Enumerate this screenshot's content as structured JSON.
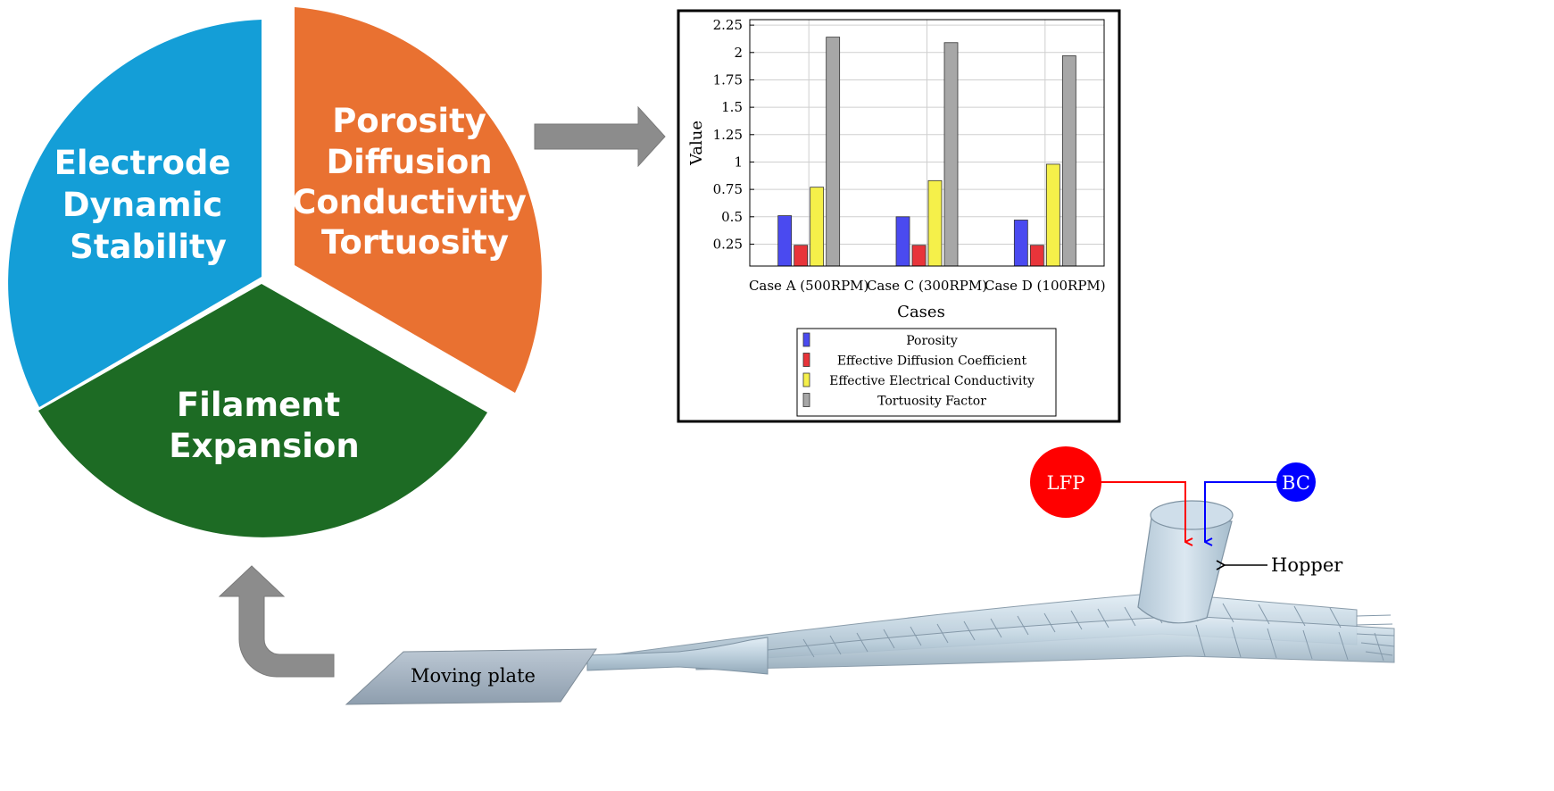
{
  "pie": {
    "segments": [
      {
        "lines": [
          "Electrode",
          "Dynamic",
          "Stability"
        ],
        "color": "#149ed7"
      },
      {
        "lines": [
          "Porosity",
          "Diffusion",
          "Conductivity",
          "Tortuosity"
        ],
        "color": "#e97131"
      },
      {
        "lines": [
          "Filament",
          "Expansion"
        ],
        "color": "#1d6b24"
      }
    ]
  },
  "arrows": {
    "color": "#8c8c8c"
  },
  "chart_data": {
    "type": "bar",
    "ylabel": "Value",
    "xlabel": "Cases",
    "categories": [
      "Case A (500RPM)",
      "Case C (300RPM)",
      "Case D (100RPM)"
    ],
    "yticks": [
      "0.25",
      "0.5",
      "0.75",
      "1",
      "1.25",
      "1.5",
      "1.75",
      "2",
      "2.25"
    ],
    "ylim": [
      0.05,
      2.3
    ],
    "grid": true,
    "legend_position": "bottom",
    "series": [
      {
        "name": "Porosity",
        "color": "#4a4af0",
        "values": [
          0.51,
          0.5,
          0.47
        ]
      },
      {
        "name": "Effective Diffusion Coefficient",
        "color": "#e8343a",
        "values": [
          0.24,
          0.24,
          0.24
        ]
      },
      {
        "name": "Effective Electrical Conductivity",
        "color": "#f5f04a",
        "values": [
          0.77,
          0.83,
          0.98
        ]
      },
      {
        "name": "Tortuosity Factor",
        "color": "#a7a7a7",
        "values": [
          2.14,
          2.09,
          1.97
        ]
      }
    ]
  },
  "printer": {
    "lfp_label": "LFP",
    "lfp_color": "#ff0000",
    "bc_label": "BC",
    "bc_color": "#0000ff",
    "hopper_label": "Hopper",
    "plate_label": "Moving plate"
  }
}
